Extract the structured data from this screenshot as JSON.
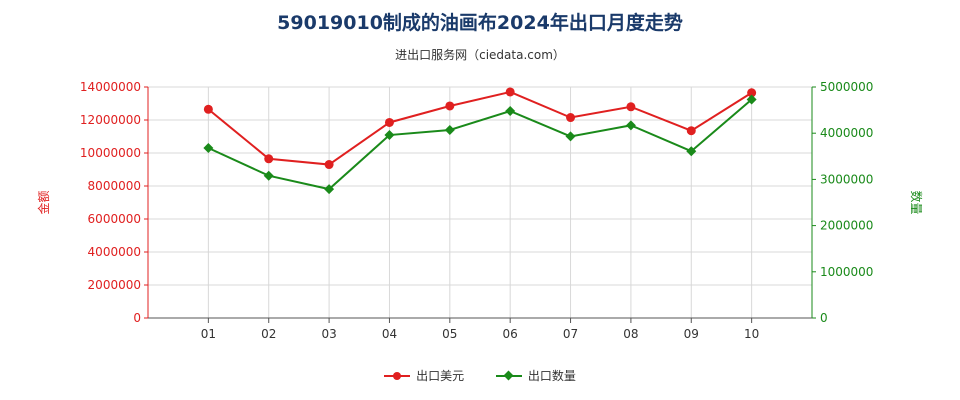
{
  "chart_data": {
    "type": "line",
    "title": "59019010制成的油画布2024年出口月度走势",
    "subtitle": "进出口服务网（ciedata.com）",
    "categories": [
      "01",
      "02",
      "03",
      "04",
      "05",
      "06",
      "07",
      "08",
      "09",
      "10"
    ],
    "y_left": {
      "label": "金额",
      "ylim": [
        0,
        14000000
      ],
      "ticks": [
        "0",
        "2000000",
        "4000000",
        "6000000",
        "8000000",
        "10000000",
        "12000000",
        "14000000"
      ],
      "color": "#e02020"
    },
    "y_right": {
      "label": "数量",
      "ylim": [
        0,
        5000000
      ],
      "ticks": [
        "0",
        "1000000",
        "2000000",
        "3000000",
        "4000000",
        "5000000"
      ],
      "color": "#1a8a1a"
    },
    "series": [
      {
        "name": "出口美元",
        "axis": "left",
        "color": "#e02020",
        "marker": "circle",
        "values": [
          12650000,
          9650000,
          9300000,
          11850000,
          12850000,
          13700000,
          12150000,
          12800000,
          11350000,
          13650000
        ]
      },
      {
        "name": "出口数量",
        "axis": "right",
        "color": "#1a8a1a",
        "marker": "diamond",
        "values": [
          3680000,
          3080000,
          2790000,
          3960000,
          4070000,
          4480000,
          3930000,
          4170000,
          3610000,
          4730000
        ]
      }
    ],
    "grid": true,
    "legend": "bottom-center"
  }
}
